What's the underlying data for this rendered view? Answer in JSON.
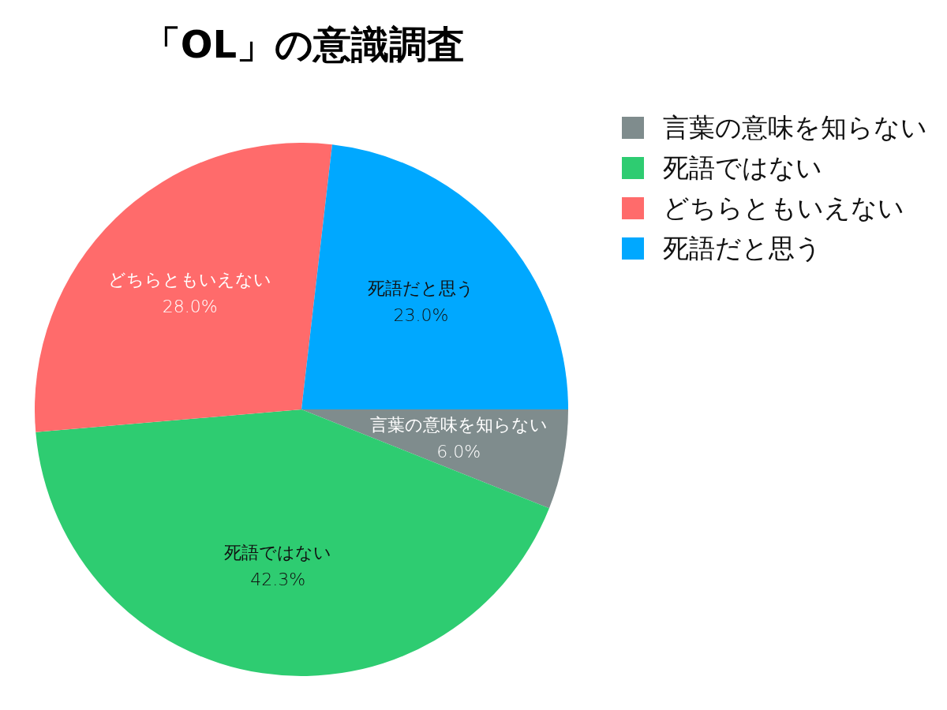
{
  "chart_data": {
    "type": "pie",
    "title": "「OL」の意識調査",
    "categories": [
      "言葉の意味を知らない",
      "死語ではない",
      "どちらともいえない",
      "死語だと思う"
    ],
    "values": [
      6.0,
      42.3,
      28.0,
      23.0
    ],
    "value_labels": [
      "6.0%",
      "42.3%",
      "28.0%",
      "23.0%"
    ],
    "colors": [
      "#7f8c8d",
      "#2ecc71",
      "#ff6b6b",
      "#00a8ff"
    ],
    "legend": "top right"
  }
}
